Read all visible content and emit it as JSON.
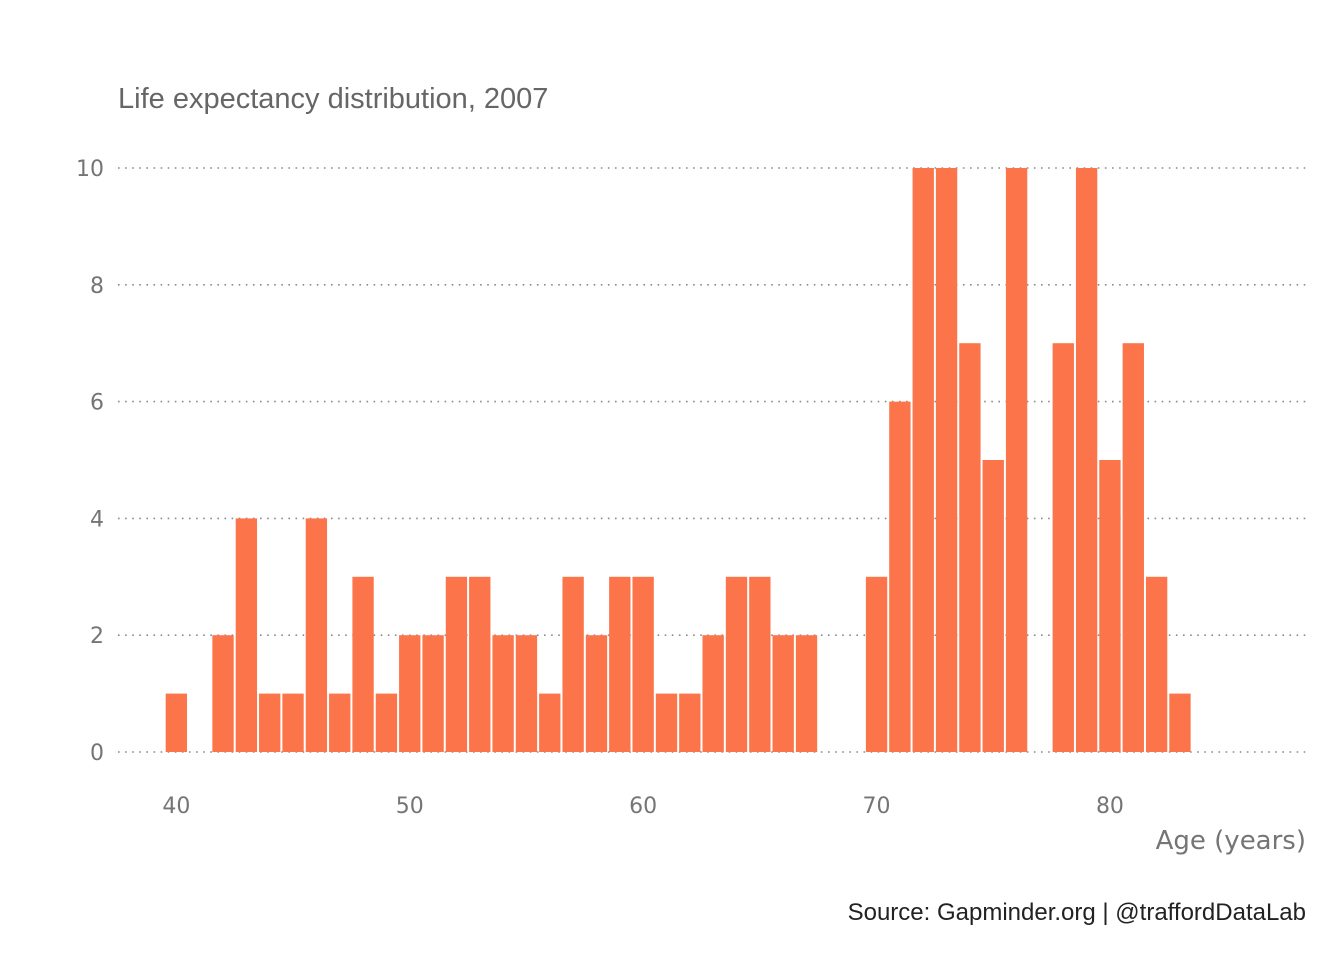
{
  "chart_data": {
    "type": "bar",
    "title": "Life expectancy distribution, 2007",
    "xlabel": "Age (years)",
    "ylabel": "",
    "caption": "Source: Gapminder.org  |  @traffordDataLab",
    "bar_color": "#fc7449",
    "grid": "horizontal dotted",
    "xlim": [
      37.5,
      88.4
    ],
    "ylim": [
      0,
      10
    ],
    "x_ticks": [
      40,
      50,
      60,
      70,
      80
    ],
    "y_ticks": [
      0,
      2,
      4,
      6,
      8,
      10
    ],
    "bin_width": 1,
    "x": [
      40,
      41,
      42,
      43,
      44,
      45,
      46,
      47,
      48,
      49,
      50,
      51,
      52,
      53,
      54,
      55,
      56,
      57,
      58,
      59,
      60,
      61,
      62,
      63,
      64,
      65,
      66,
      67,
      68,
      69,
      70,
      71,
      72,
      73,
      74,
      75,
      76,
      77,
      78,
      79,
      80,
      81,
      82,
      83
    ],
    "values": [
      1,
      0,
      2,
      4,
      1,
      1,
      4,
      1,
      3,
      1,
      2,
      2,
      3,
      3,
      2,
      2,
      1,
      3,
      2,
      3,
      3,
      1,
      1,
      2,
      3,
      3,
      2,
      2,
      0,
      0,
      3,
      6,
      10,
      10,
      7,
      5,
      10,
      0,
      7,
      10,
      5,
      7,
      3,
      1
    ]
  }
}
